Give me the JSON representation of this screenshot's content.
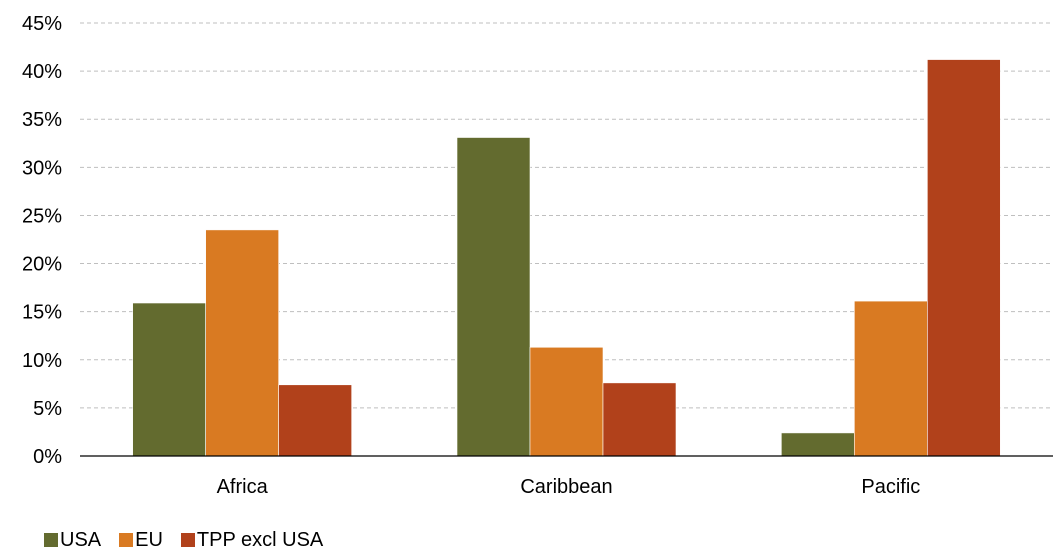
{
  "chart_data": {
    "type": "bar",
    "categories": [
      "Africa",
      "Caribbean",
      "Pacific"
    ],
    "series": [
      {
        "name": "USA",
        "values": [
          15.9,
          33.1,
          2.4
        ],
        "color": "#636B2F"
      },
      {
        "name": "EU",
        "values": [
          23.5,
          11.3,
          16.1
        ],
        "color": "#D97A22"
      },
      {
        "name": "TPP excl USA",
        "values": [
          7.4,
          7.6,
          41.2
        ],
        "color": "#B1411B"
      }
    ],
    "ylim": [
      0,
      45
    ],
    "yticks": [
      0,
      5,
      10,
      15,
      20,
      25,
      30,
      35,
      40,
      45
    ],
    "ytick_format": "%",
    "grid": true,
    "legend_position": "bottom-left",
    "title": "",
    "xlabel": "",
    "ylabel": ""
  }
}
